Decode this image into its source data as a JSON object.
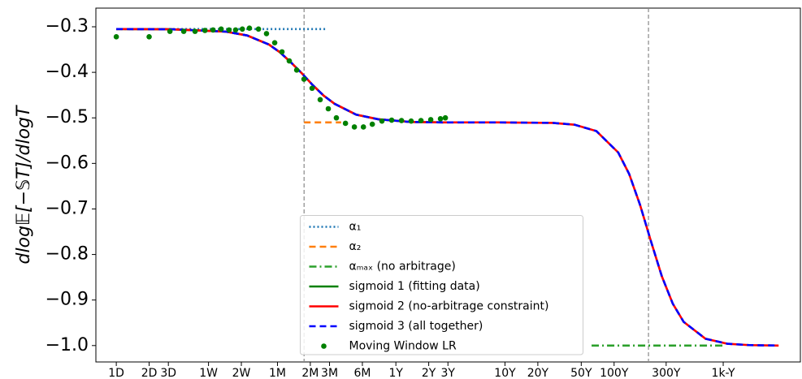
{
  "chart_data": {
    "type": "line",
    "y_label": "dlog𝔼[−𝕊T]/dlogT",
    "xscale": "log",
    "xlim": [
      0.65,
      1860000
    ],
    "ylim": [
      -1.036,
      -0.259
    ],
    "xticks": [
      {
        "value": 1,
        "label": "1D"
      },
      {
        "value": 2,
        "label": "2D"
      },
      {
        "value": 3,
        "label": "3D"
      },
      {
        "value": 7,
        "label": "1W"
      },
      {
        "value": 14,
        "label": "2W"
      },
      {
        "value": 30,
        "label": "1M"
      },
      {
        "value": 60,
        "label": "2M"
      },
      {
        "value": 90,
        "label": "3M"
      },
      {
        "value": 180,
        "label": "6M"
      },
      {
        "value": 365,
        "label": "1Y"
      },
      {
        "value": 730,
        "label": "2Y"
      },
      {
        "value": 1095,
        "label": "3Y"
      },
      {
        "value": 3650,
        "label": "10Y"
      },
      {
        "value": 7300,
        "label": "20Y"
      },
      {
        "value": 18250,
        "label": "50Y"
      },
      {
        "value": 36500,
        "label": "100Y"
      },
      {
        "value": 109500,
        "label": "300Y"
      },
      {
        "value": 365000,
        "label": "1k-Y"
      }
    ],
    "yticks": [
      {
        "value": -0.3,
        "label": "−0.3"
      },
      {
        "value": -0.4,
        "label": "−0.4"
      },
      {
        "value": -0.5,
        "label": "−0.5"
      },
      {
        "value": -0.6,
        "label": "−0.6"
      },
      {
        "value": -0.7,
        "label": "−0.7"
      },
      {
        "value": -0.8,
        "label": "−0.8"
      },
      {
        "value": -0.9,
        "label": "−0.9"
      },
      {
        "value": -1.0,
        "label": "−1.0"
      }
    ],
    "vlines": [
      52.6,
      75400
    ],
    "vline_color": "#888888",
    "legend": "lower center",
    "series": [
      {
        "name": "α₁",
        "color": "#1f77b4",
        "style": "dotted",
        "x": [
          1,
          82
        ],
        "values": [
          -0.305,
          -0.305
        ]
      },
      {
        "name": "α₂",
        "color": "#ff7f0e",
        "style": "dashed",
        "x": [
          52.6,
          115
        ],
        "values": [
          -0.51,
          -0.51
        ]
      },
      {
        "name": "αₘₐₓ (no arbitrage)",
        "color": "#2ca02c",
        "style": "dashdot",
        "x": [
          22700,
          365000
        ],
        "values": [
          -1.0,
          -1.0
        ]
      },
      {
        "name": "sigmoid 1 (fitting data)",
        "color": "#008000",
        "style": "solid",
        "x": [
          1,
          3.16,
          10,
          15.8,
          25.1,
          31.6,
          39.8,
          50.1,
          63.1,
          79.4,
          100,
          158,
          251,
          501,
          1000
        ],
        "values": [
          -0.305,
          -0.3055,
          -0.3105,
          -0.319,
          -0.339,
          -0.356,
          -0.378,
          -0.402,
          -0.428,
          -0.451,
          -0.469,
          -0.493,
          -0.503,
          -0.509,
          -0.51
        ]
      },
      {
        "name": "sigmoid 2 (no-arbitrage constraint)",
        "color": "#ff0000",
        "style": "solid",
        "x": [
          1,
          3.16,
          10,
          15.8,
          25.1,
          31.6,
          39.8,
          50.1,
          63.1,
          79.4,
          100,
          158,
          251,
          501,
          1000,
          3162,
          10000,
          15849,
          25119,
          39811,
          50119,
          63096,
          79433,
          100000,
          125893,
          158489,
          251189,
          398107,
          630957,
          1174898
        ],
        "values": [
          -0.305,
          -0.3055,
          -0.3105,
          -0.319,
          -0.339,
          -0.356,
          -0.378,
          -0.402,
          -0.428,
          -0.451,
          -0.469,
          -0.493,
          -0.503,
          -0.509,
          -0.51,
          -0.51,
          -0.511,
          -0.515,
          -0.529,
          -0.576,
          -0.623,
          -0.691,
          -0.771,
          -0.848,
          -0.908,
          -0.948,
          -0.985,
          -0.996,
          -0.999,
          -1.0
        ]
      },
      {
        "name": "sigmoid 3 (all together)",
        "color": "#0000ff",
        "style": "dashed",
        "x": [
          1,
          3.16,
          10,
          15.8,
          25.1,
          31.6,
          39.8,
          50.1,
          63.1,
          79.4,
          100,
          158,
          251,
          501,
          1000,
          3162,
          10000,
          15849,
          25119,
          39811,
          50119,
          63096,
          79433,
          100000,
          125893,
          158489,
          251189,
          398107,
          630957,
          1174898
        ],
        "values": [
          -0.305,
          -0.3055,
          -0.3105,
          -0.319,
          -0.339,
          -0.356,
          -0.378,
          -0.402,
          -0.428,
          -0.451,
          -0.469,
          -0.493,
          -0.503,
          -0.509,
          -0.51,
          -0.51,
          -0.511,
          -0.515,
          -0.529,
          -0.576,
          -0.623,
          -0.691,
          -0.771,
          -0.848,
          -0.908,
          -0.948,
          -0.985,
          -0.996,
          -0.999,
          -1.0
        ]
      },
      {
        "name": "Moving Window LR",
        "color": "#008000",
        "style": "scatter",
        "x": [
          1,
          2,
          3.1,
          4.15,
          5.27,
          6.49,
          7.7,
          9.14,
          10.8,
          12.4,
          14.3,
          16.6,
          20.1,
          23.8,
          28.3,
          33.0,
          38.5,
          45.0,
          52.5,
          62.3,
          73.9,
          87.7,
          104,
          126,
          152,
          184,
          222,
          272,
          334,
          411,
          504,
          620,
          762,
          935,
          1037
        ],
        "values": [
          -0.322,
          -0.322,
          -0.31,
          -0.31,
          -0.31,
          -0.308,
          -0.307,
          -0.305,
          -0.307,
          -0.307,
          -0.305,
          -0.303,
          -0.305,
          -0.315,
          -0.335,
          -0.355,
          -0.375,
          -0.395,
          -0.415,
          -0.435,
          -0.46,
          -0.48,
          -0.5,
          -0.512,
          -0.52,
          -0.52,
          -0.514,
          -0.507,
          -0.505,
          -0.506,
          -0.507,
          -0.506,
          -0.504,
          -0.502,
          -0.5
        ]
      }
    ]
  }
}
